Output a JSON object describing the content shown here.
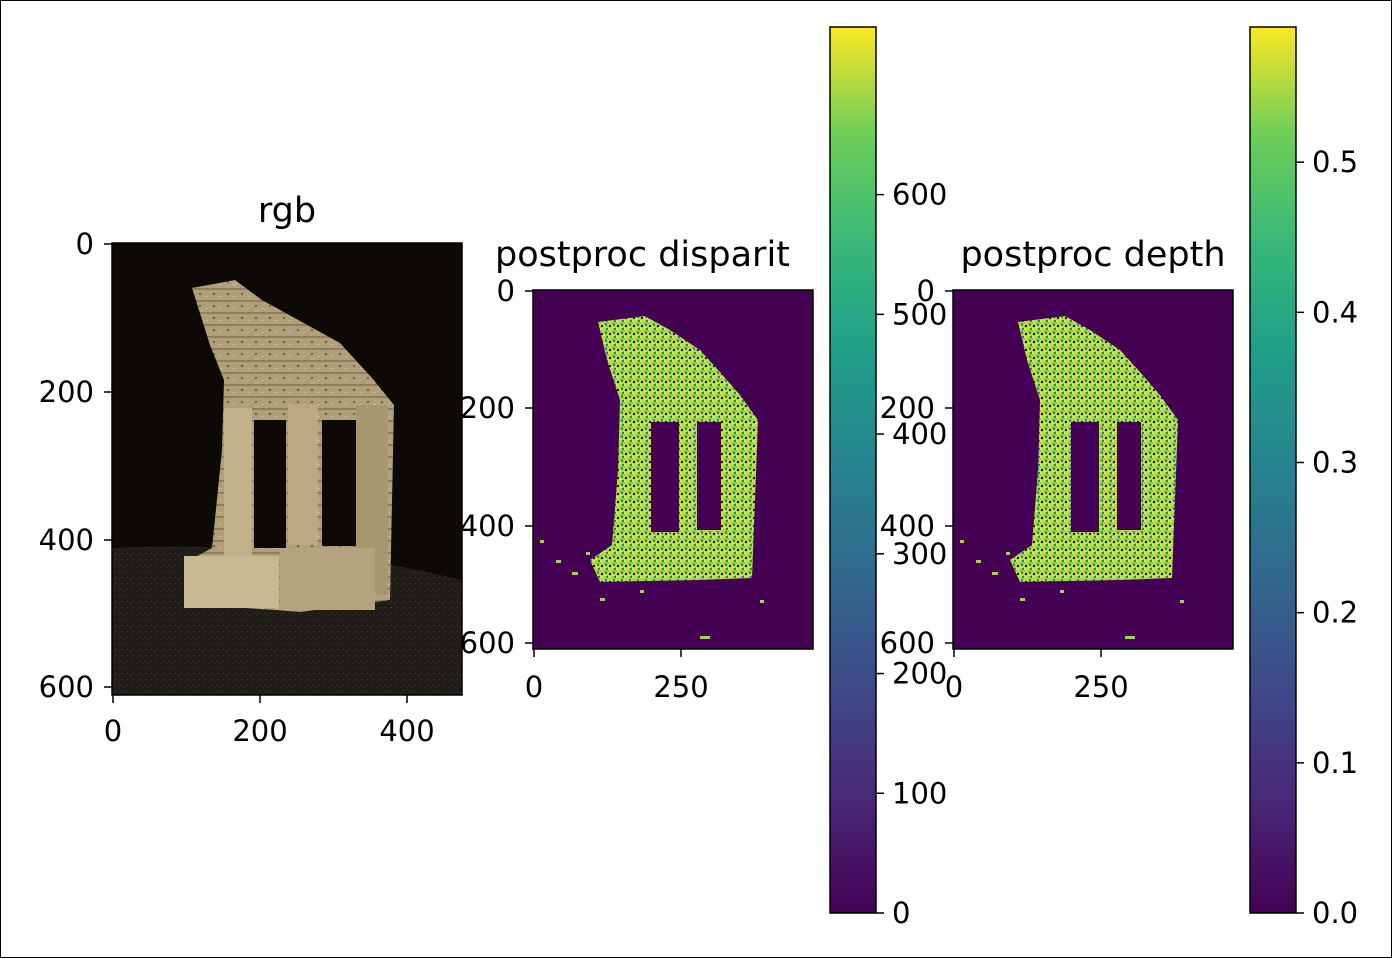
{
  "chart_data": [
    {
      "type": "image",
      "title": "rgb",
      "x_ticks": [
        "0",
        "200",
        "400"
      ],
      "y_ticks": [
        "0",
        "200",
        "400",
        "600"
      ],
      "xlim": [
        0,
        478
      ],
      "ylim": [
        0,
        610
      ],
      "content": "photograph of a ruined stone temple model with three columns on a dark background"
    },
    {
      "type": "heatmap",
      "title": "postproc disparit",
      "colormap": "viridis",
      "x_ticks": [
        "0",
        "250"
      ],
      "y_ticks": [
        "0",
        "200",
        "400",
        "600"
      ],
      "xlim": [
        0,
        478
      ],
      "ylim": [
        0,
        610
      ],
      "colorbar": {
        "ticks": [
          "0",
          "100",
          "200",
          "300",
          "400",
          "500",
          "600"
        ],
        "range": [
          0,
          740
        ]
      }
    },
    {
      "type": "heatmap",
      "title": "postproc depth",
      "colormap": "viridis",
      "x_ticks": [
        "0",
        "250"
      ],
      "y_ticks": [
        "0",
        "200",
        "400",
        "600"
      ],
      "xlim": [
        0,
        478
      ],
      "ylim": [
        0,
        610
      ],
      "colorbar": {
        "ticks": [
          "0.0",
          "0.1",
          "0.2",
          "0.3",
          "0.4",
          "0.5"
        ],
        "range": [
          0,
          0.59
        ]
      }
    }
  ],
  "colors": {
    "viridis_low": "#440154",
    "viridis_mid": "#21918c",
    "viridis_high": "#fde725",
    "disparity_fill": "#9cd84a",
    "stone": "#b3a27c",
    "photo_bg": "#0c0906"
  }
}
